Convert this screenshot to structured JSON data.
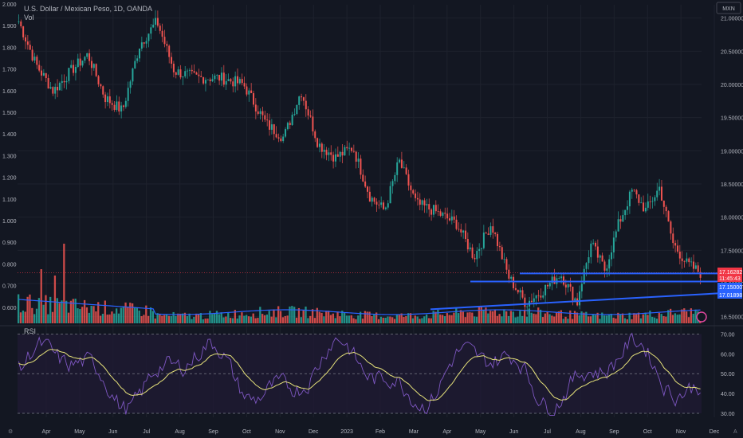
{
  "header": {
    "symbol_title": "U.S. Dollar / Mexican Peso, 1D, OANDA",
    "volume_label": "Vol",
    "currency_badge": "MXN"
  },
  "colors": {
    "background": "#131722",
    "up": "#26a69a",
    "down": "#ef5350",
    "price_line": "#f23645",
    "level_line": "#2962ff",
    "volume_ma": "#2962ff",
    "rsi_line": "#7e57c2",
    "rsi_ma": "#e6e27a",
    "rsi_band": "#1f1a33",
    "grid": "#1e222d",
    "text": "#b2b5be"
  },
  "chart_data": [
    {
      "type": "candlestick",
      "title": "U.S. Dollar / Mexican Peso, 1D, OANDA",
      "y_axis_right": {
        "ticks": [
          "21.00000",
          "20.50000",
          "20.00000",
          "19.50000",
          "19.00000",
          "18.50000",
          "18.00000",
          "17.50000",
          "17.00000",
          "16.50000"
        ],
        "range": [
          16.4,
          21.2
        ]
      },
      "y_axis_left": {
        "ticks": [
          "2.000",
          "1.900",
          "1.800",
          "1.700",
          "1.600",
          "1.500",
          "1.400",
          "1.300",
          "1.200",
          "1.100",
          "1.000",
          "0.900",
          "0.800",
          "0.700",
          "0.600"
        ]
      },
      "x_axis": {
        "ticks": [
          "Apr",
          "May",
          "Jun",
          "Jul",
          "Aug",
          "Sep",
          "Oct",
          "Nov",
          "Dec",
          "2023",
          "Feb",
          "Mar",
          "Apr",
          "May",
          "Jun",
          "Jul",
          "Aug",
          "Sep",
          "Oct",
          "Nov",
          "Dec"
        ]
      },
      "price_path": [
        {
          "x": 0,
          "y": 20.95
        },
        {
          "x": 0.03,
          "y": 20.3
        },
        {
          "x": 0.06,
          "y": 19.9
        },
        {
          "x": 0.09,
          "y": 20.2
        },
        {
          "x": 0.12,
          "y": 20.45
        },
        {
          "x": 0.15,
          "y": 19.8
        },
        {
          "x": 0.18,
          "y": 19.6
        },
        {
          "x": 0.21,
          "y": 20.6
        },
        {
          "x": 0.24,
          "y": 20.95
        },
        {
          "x": 0.27,
          "y": 20.2
        },
        {
          "x": 0.31,
          "y": 20.1
        },
        {
          "x": 0.35,
          "y": 20.1
        },
        {
          "x": 0.39,
          "y": 20.0
        },
        {
          "x": 0.43,
          "y": 19.4
        },
        {
          "x": 0.46,
          "y": 19.2
        },
        {
          "x": 0.49,
          "y": 19.9
        },
        {
          "x": 0.52,
          "y": 19.1
        },
        {
          "x": 0.55,
          "y": 18.9
        },
        {
          "x": 0.58,
          "y": 19.05
        },
        {
          "x": 0.61,
          "y": 18.3
        },
        {
          "x": 0.635,
          "y": 18.1
        },
        {
          "x": 0.66,
          "y": 18.85
        },
        {
          "x": 0.69,
          "y": 18.2
        },
        {
          "x": 0.72,
          "y": 18.1
        },
        {
          "x": 0.76,
          "y": 17.9
        },
        {
          "x": 0.79,
          "y": 17.4
        },
        {
          "x": 0.82,
          "y": 17.9
        },
        {
          "x": 0.85,
          "y": 17.1
        },
        {
          "x": 0.88,
          "y": 16.7
        },
        {
          "x": 0.91,
          "y": 16.9
        },
        {
          "x": 0.94,
          "y": 17.15
        },
        {
          "x": 0.97,
          "y": 16.7
        },
        {
          "x": 1.0,
          "y": 16.8
        }
      ],
      "price_path_2": [
        {
          "x": 0,
          "y": 16.8
        },
        {
          "x": 0.07,
          "y": 17.6
        },
        {
          "x": 0.14,
          "y": 17.2
        },
        {
          "x": 0.21,
          "y": 17.9
        },
        {
          "x": 0.28,
          "y": 18.4
        },
        {
          "x": 0.35,
          "y": 18.1
        },
        {
          "x": 0.42,
          "y": 18.45
        },
        {
          "x": 0.49,
          "y": 17.6
        },
        {
          "x": 0.56,
          "y": 17.3
        },
        {
          "x": 0.63,
          "y": 17.16
        }
      ],
      "price_labels": [
        {
          "value": "17.16282",
          "countdown": "11:45:43",
          "color": "#f23645"
        },
        {
          "value": "17.15000",
          "color": "#2962ff"
        },
        {
          "value": "17.01898",
          "color": "#2962ff"
        }
      ],
      "levels": [
        {
          "name": "upper",
          "y": 17.16282
        },
        {
          "name": "middle",
          "y": 17.15
        },
        {
          "name": "trendline",
          "y_start": 16.78,
          "y_end": 17.01898
        }
      ]
    },
    {
      "type": "line",
      "title": "RSI",
      "y_axis": {
        "ticks": [
          "70.00",
          "60.00",
          "50.00",
          "40.00",
          "30.00"
        ],
        "range": [
          28,
          73
        ]
      },
      "overbought": 70,
      "oversold": 30,
      "mid": 50
    }
  ]
}
